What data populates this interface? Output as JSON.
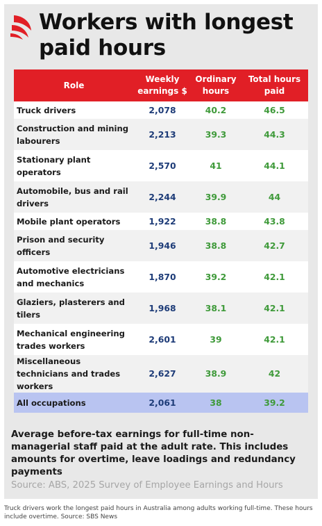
{
  "title": "Workers with longest paid hours",
  "table": {
    "headers": [
      "Role",
      "Weekly earnings $",
      "Ordinary hours",
      "Total hours paid"
    ],
    "rows": [
      [
        "Truck drivers",
        "2,078",
        "40.2",
        "46.5"
      ],
      [
        "Construction and mining labourers",
        "2,213",
        "39.3",
        "44.3"
      ],
      [
        "Stationary plant operators",
        "2,570",
        "41",
        "44.1"
      ],
      [
        "Automobile, bus and rail drivers",
        "2,244",
        "39.9",
        "44"
      ],
      [
        "Mobile plant operators",
        "1,922",
        "38.8",
        "43.8"
      ],
      [
        "Prison and security officers",
        "1,946",
        "38.8",
        "42.7"
      ],
      [
        "Automotive electricians and mechanics",
        "1,870",
        "39.2",
        "42.1"
      ],
      [
        "Glaziers, plasterers and tilers",
        "1,968",
        "38.1",
        "42.1"
      ],
      [
        "Mechanical engineering trades workers",
        "2,601",
        "39",
        "42.1"
      ],
      [
        "Miscellaneous technicians and trades workers",
        "2,627",
        "38.9",
        "42"
      ],
      [
        "All occupations",
        "2,061",
        "38",
        "39.2"
      ]
    ]
  },
  "note": "Average before-tax earnings for full-time non-managerial staff paid at the adult rate. This includes amounts for overtime, leave loadings and redundancy payments",
  "source": "Source: ABS, 2025 Survey of Employee Earnings and Hours",
  "caption": "Truck drivers work the longest paid hours in Australia among adults working full-time. These hours include overtime. Source: SBS News",
  "colors": {
    "header": "#e11f26",
    "earnings": "#1e3c78",
    "hours": "#3f9a3a",
    "total_row": "#b9c4f1",
    "brand": "#e11f26"
  },
  "icons": {
    "logo": "sbs-logo-icon"
  },
  "chart_data": {
    "type": "table",
    "title": "Workers with longest paid hours",
    "columns": [
      "Role",
      "Weekly earnings $",
      "Ordinary hours",
      "Total hours paid"
    ],
    "categories": [
      "Truck drivers",
      "Construction and mining labourers",
      "Stationary plant operators",
      "Automobile, bus and rail drivers",
      "Mobile plant operators",
      "Prison and security officers",
      "Automotive electricians and mechanics",
      "Glaziers, plasterers and tilers",
      "Mechanical engineering trades workers",
      "Miscellaneous technicians and trades workers",
      "All occupations"
    ],
    "series": [
      {
        "name": "Weekly earnings $",
        "values": [
          2078,
          2213,
          2570,
          2244,
          1922,
          1946,
          1870,
          1968,
          2601,
          2627,
          2061
        ]
      },
      {
        "name": "Ordinary hours",
        "values": [
          40.2,
          39.3,
          41,
          39.9,
          38.8,
          38.8,
          39.2,
          38.1,
          39,
          38.9,
          38
        ]
      },
      {
        "name": "Total hours paid",
        "values": [
          46.5,
          44.3,
          44.1,
          44,
          43.8,
          42.7,
          42.1,
          42.1,
          42.1,
          42,
          39.2
        ]
      }
    ]
  }
}
